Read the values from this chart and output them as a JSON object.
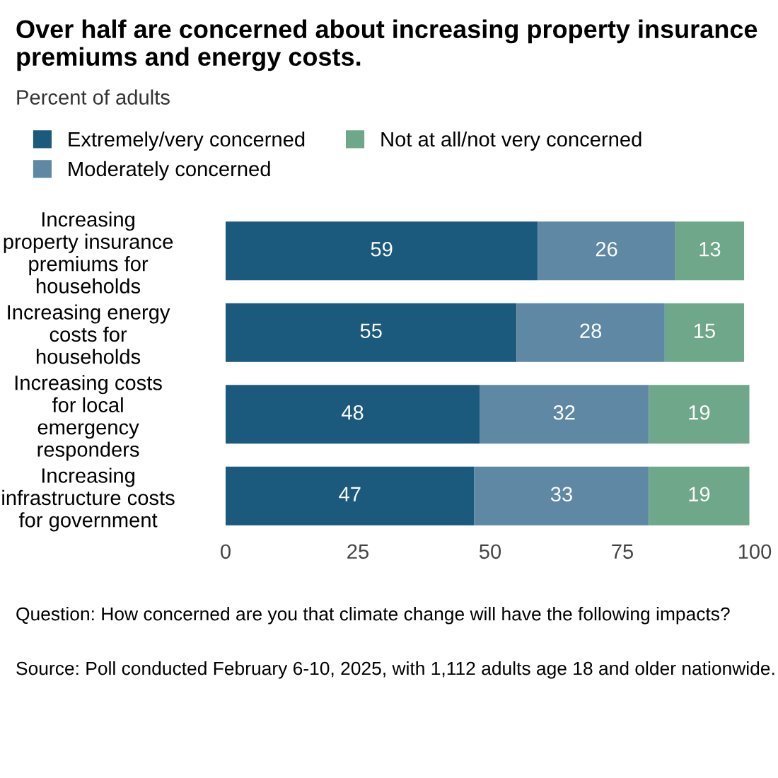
{
  "chart_data": {
    "type": "bar",
    "orientation": "horizontal",
    "stacked": true,
    "title": "Over half are concerned about increasing property insurance premiums and energy costs.",
    "subtitle": "Percent of adults",
    "categories": [
      "Increasing property insurance premiums for households",
      "Increasing energy costs for households",
      "Increasing costs for local emergency responders",
      "Increasing infrastructure costs for government"
    ],
    "series": [
      {
        "name": "Extremely/very concerned",
        "color": "#1b5a7c",
        "values": [
          59,
          55,
          48,
          47
        ]
      },
      {
        "name": "Moderately concerned",
        "color": "#5e88a3",
        "values": [
          26,
          28,
          32,
          33
        ]
      },
      {
        "name": "Not at all/not very concerned",
        "color": "#6fa78a",
        "values": [
          13,
          15,
          19,
          19
        ]
      }
    ],
    "xlim": [
      0,
      100
    ],
    "xticks": [
      0,
      25,
      50,
      75,
      100
    ],
    "data_labels": true,
    "legend": "top",
    "grid": false,
    "annotations": [
      "Question: How concerned are you that climate change will have the following impacts?",
      "Source: Poll conducted February 6-10, 2025, with 1,112 adults age 18 and older nationwide."
    ]
  }
}
